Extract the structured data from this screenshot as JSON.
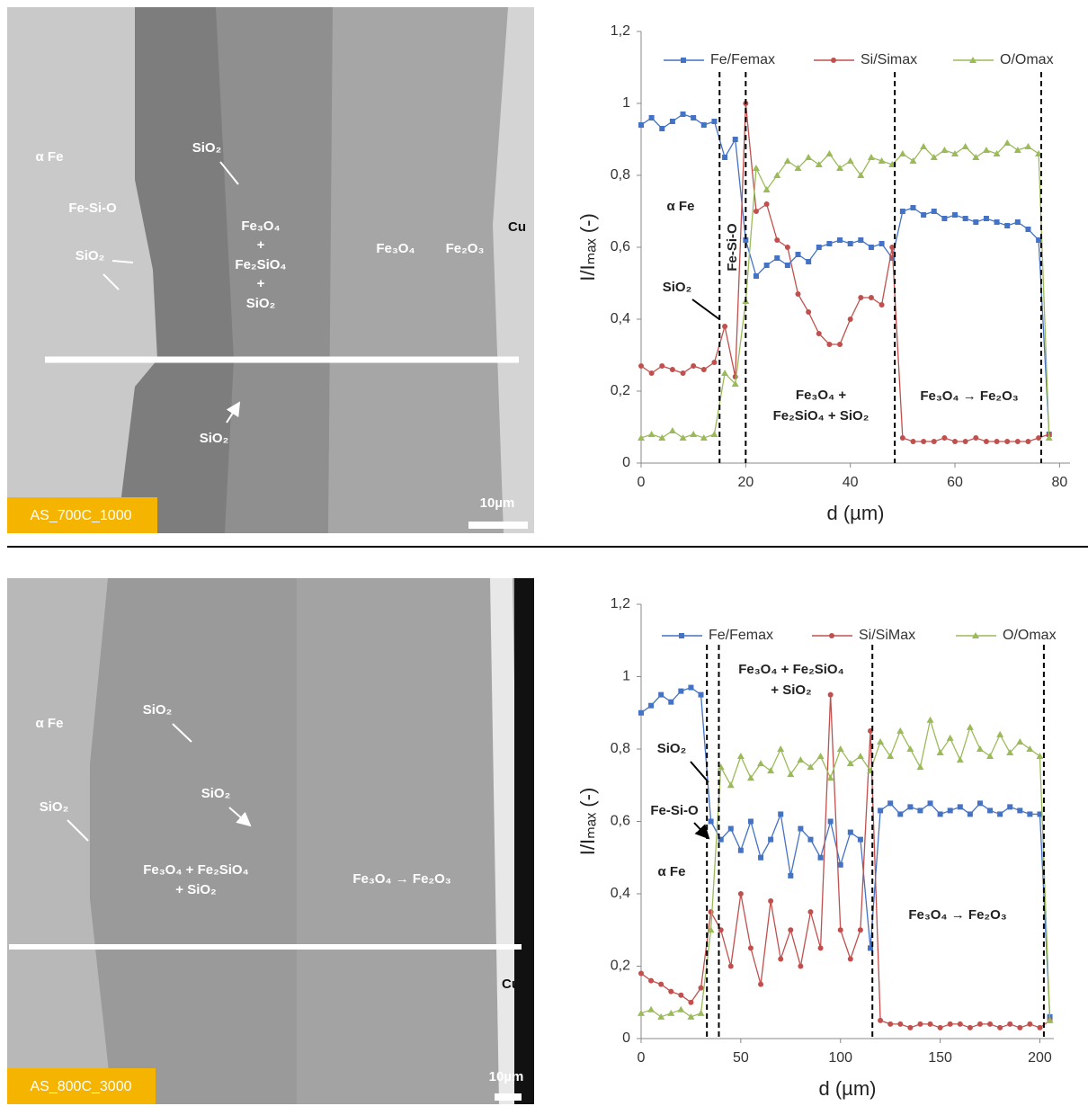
{
  "micrographs": [
    {
      "sample_label": "AS_700C_1000",
      "scale_bar": "10µm",
      "annotations": [
        "α Fe",
        "Fe-Si-O",
        "SiO₂",
        "SiO₂",
        "Fe₃O₄",
        "+",
        "Fe₂SiO₄",
        "+",
        "SiO₂",
        "Fe₃O₄",
        "Fe₂O₃",
        "Cu",
        "SiO₂"
      ]
    },
    {
      "sample_label": "AS_800C_3000",
      "scale_bar": "10µm",
      "annotations": [
        "α Fe",
        "SiO₂",
        "SiO₂",
        "SiO₂",
        "Fe₃O₄ + Fe₂SiO₄",
        "+ SiO₂",
        "Fe₃O₄ → Fe₂O₃",
        "Cu"
      ]
    }
  ],
  "chart_data": [
    {
      "type": "line",
      "x_label": "d (µm)",
      "y_label": "I/Iₘₐₓ (-)",
      "xlim": [
        0,
        82
      ],
      "xticks": [
        0,
        20,
        40,
        60,
        80
      ],
      "ylim": [
        0,
        1.2
      ],
      "yticks": [
        0,
        {
          "value": 0.2,
          "label": "0,2"
        },
        {
          "value": 0.4,
          "label": "0,4"
        },
        {
          "value": 0.6,
          "label": "0,6"
        },
        {
          "value": 0.8,
          "label": "0,8"
        },
        1,
        {
          "value": 1.2,
          "label": "1,2"
        }
      ],
      "boundaries": [
        15,
        20,
        48.5,
        76.5
      ],
      "annotations": [
        "α Fe",
        "SiO₂",
        "Fe-Si-O",
        "Fe₃O₄ +",
        "Fe₂SiO₄ + SiO₂",
        "Fe₃O₄ → Fe₂O₃"
      ],
      "x": [
        0,
        2,
        4,
        6,
        8,
        10,
        12,
        14,
        16,
        18,
        20,
        22,
        24,
        26,
        28,
        30,
        32,
        34,
        36,
        38,
        40,
        42,
        44,
        46,
        48,
        50,
        52,
        54,
        56,
        58,
        60,
        62,
        64,
        66,
        68,
        70,
        72,
        74,
        76,
        78
      ],
      "series": [
        {
          "name": "Fe/Femax",
          "color": "#4472c4",
          "marker": "square",
          "values": [
            0.94,
            0.96,
            0.93,
            0.95,
            0.97,
            0.96,
            0.94,
            0.95,
            0.85,
            0.9,
            0.62,
            0.52,
            0.55,
            0.57,
            0.55,
            0.58,
            0.56,
            0.6,
            0.61,
            0.62,
            0.61,
            0.62,
            0.6,
            0.61,
            0.57,
            0.7,
            0.71,
            0.69,
            0.7,
            0.68,
            0.69,
            0.68,
            0.67,
            0.68,
            0.67,
            0.66,
            0.67,
            0.65,
            0.62,
            0.08
          ]
        },
        {
          "name": "Si/Simax",
          "color": "#c0504d",
          "marker": "circle",
          "values": [
            0.27,
            0.25,
            0.27,
            0.26,
            0.25,
            0.27,
            0.26,
            0.28,
            0.38,
            0.24,
            1.0,
            0.7,
            0.72,
            0.62,
            0.6,
            0.47,
            0.42,
            0.36,
            0.33,
            0.33,
            0.4,
            0.46,
            0.46,
            0.44,
            0.6,
            0.07,
            0.06,
            0.06,
            0.06,
            0.07,
            0.06,
            0.06,
            0.07,
            0.06,
            0.06,
            0.06,
            0.06,
            0.06,
            0.07,
            0.08
          ]
        },
        {
          "name": "O/Omax",
          "color": "#9bbb59",
          "marker": "triangle",
          "values": [
            0.07,
            0.08,
            0.07,
            0.09,
            0.07,
            0.08,
            0.07,
            0.08,
            0.25,
            0.22,
            0.45,
            0.82,
            0.76,
            0.8,
            0.84,
            0.82,
            0.85,
            0.83,
            0.86,
            0.82,
            0.84,
            0.8,
            0.85,
            0.84,
            0.83,
            0.86,
            0.84,
            0.88,
            0.85,
            0.87,
            0.86,
            0.88,
            0.85,
            0.87,
            0.86,
            0.89,
            0.87,
            0.88,
            0.86,
            0.07
          ]
        }
      ]
    },
    {
      "type": "line",
      "x_label": "d (µm)",
      "y_label": "I/Iₘₐₓ (-)",
      "xlim": [
        0,
        207
      ],
      "xticks": [
        0,
        50,
        100,
        150,
        200
      ],
      "ylim": [
        0,
        1.2
      ],
      "yticks": [
        0,
        {
          "value": 0.2,
          "label": "0,2"
        },
        {
          "value": 0.4,
          "label": "0,4"
        },
        {
          "value": 0.6,
          "label": "0,6"
        },
        {
          "value": 0.8,
          "label": "0,8"
        },
        1,
        {
          "value": 1.2,
          "label": "1,2"
        }
      ],
      "boundaries": [
        33,
        39,
        116,
        202
      ],
      "annotations": [
        "Fe₃O₄ + Fe₂SiO₄",
        "+ SiO₂",
        "SiO₂",
        "Fe-Si-O",
        "α Fe",
        "Fe₃O₄ → Fe₂O₃"
      ],
      "x": [
        0,
        5,
        10,
        15,
        20,
        25,
        30,
        35,
        40,
        45,
        50,
        55,
        60,
        65,
        70,
        75,
        80,
        85,
        90,
        95,
        100,
        105,
        110,
        115,
        120,
        125,
        130,
        135,
        140,
        145,
        150,
        155,
        160,
        165,
        170,
        175,
        180,
        185,
        190,
        195,
        200,
        205
      ],
      "series": [
        {
          "name": "Fe/Femax",
          "color": "#4472c4",
          "marker": "square",
          "values": [
            0.9,
            0.92,
            0.95,
            0.93,
            0.96,
            0.97,
            0.95,
            0.6,
            0.55,
            0.58,
            0.52,
            0.6,
            0.5,
            0.55,
            0.62,
            0.45,
            0.58,
            0.55,
            0.5,
            0.6,
            0.48,
            0.57,
            0.55,
            0.25,
            0.63,
            0.65,
            0.62,
            0.64,
            0.63,
            0.65,
            0.62,
            0.63,
            0.64,
            0.62,
            0.65,
            0.63,
            0.62,
            0.64,
            0.63,
            0.62,
            0.62,
            0.06
          ]
        },
        {
          "name": "Si/SiMax",
          "color": "#c0504d",
          "marker": "circle",
          "values": [
            0.18,
            0.16,
            0.15,
            0.13,
            0.12,
            0.1,
            0.14,
            0.35,
            0.3,
            0.2,
            0.4,
            0.25,
            0.15,
            0.38,
            0.22,
            0.3,
            0.2,
            0.35,
            0.25,
            0.95,
            0.3,
            0.22,
            0.3,
            0.85,
            0.05,
            0.04,
            0.04,
            0.03,
            0.04,
            0.04,
            0.03,
            0.04,
            0.04,
            0.03,
            0.04,
            0.04,
            0.03,
            0.04,
            0.03,
            0.04,
            0.03,
            0.05
          ]
        },
        {
          "name": "O/Omax",
          "color": "#9bbb59",
          "marker": "triangle",
          "values": [
            0.07,
            0.08,
            0.06,
            0.07,
            0.08,
            0.06,
            0.07,
            0.3,
            0.75,
            0.7,
            0.78,
            0.72,
            0.76,
            0.74,
            0.8,
            0.73,
            0.77,
            0.75,
            0.78,
            0.72,
            0.8,
            0.76,
            0.78,
            0.74,
            0.82,
            0.78,
            0.85,
            0.8,
            0.75,
            0.88,
            0.79,
            0.83,
            0.77,
            0.86,
            0.8,
            0.78,
            0.84,
            0.79,
            0.82,
            0.8,
            0.78,
            0.05
          ]
        }
      ]
    }
  ]
}
